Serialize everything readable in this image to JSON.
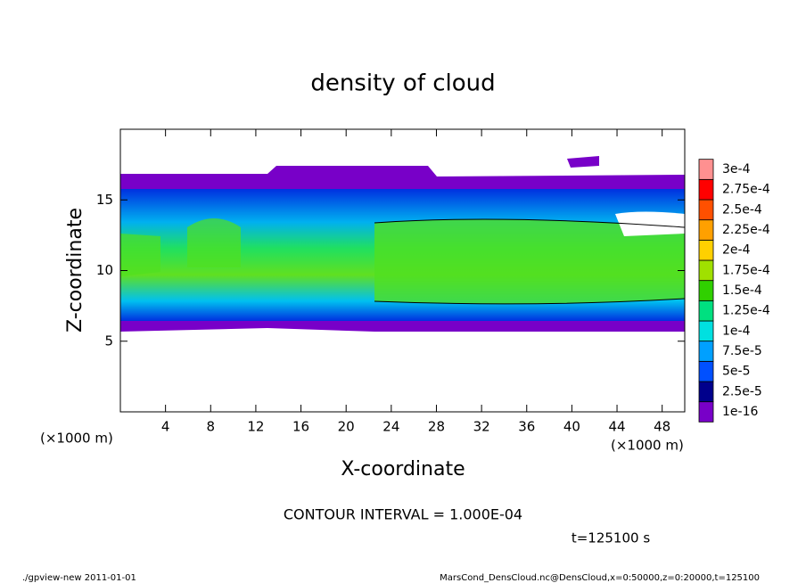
{
  "chart_data": {
    "type": "contour",
    "title": "density of cloud",
    "x_label": "X-coordinate",
    "y_label": "Z-coordinate",
    "x_unit_labels": [
      "(×1000 m)",
      "(×1000 m)"
    ],
    "xlim": [
      0,
      50
    ],
    "xticks": [
      4,
      8,
      12,
      16,
      20,
      24,
      28,
      32,
      36,
      40,
      44,
      48
    ],
    "ylim": [
      0,
      20
    ],
    "yticks": [
      5,
      10,
      15
    ],
    "colorbar": {
      "levels": [
        {
          "value": 1e-16,
          "label": "1e-16"
        },
        {
          "value": 2.5e-05,
          "label": "2.5e-5"
        },
        {
          "value": 5e-05,
          "label": "5e-5"
        },
        {
          "value": 7.5e-05,
          "label": "7.5e-5"
        },
        {
          "value": 0.0001,
          "label": "1e-4"
        },
        {
          "value": 0.000125,
          "label": "1.25e-4"
        },
        {
          "value": 0.00015,
          "label": "1.5e-4"
        },
        {
          "value": 0.000175,
          "label": "1.75e-4"
        },
        {
          "value": 0.0002,
          "label": "2e-4"
        },
        {
          "value": 0.000225,
          "label": "2.25e-4"
        },
        {
          "value": 0.00025,
          "label": "2.5e-4"
        },
        {
          "value": 0.000275,
          "label": "2.75e-4"
        },
        {
          "value": 0.0003,
          "label": "3e-4"
        }
      ],
      "colors": [
        "#7800c8",
        "#00008c",
        "#0050ff",
        "#00a0ff",
        "#00e0e0",
        "#00e080",
        "#30d000",
        "#a0e000",
        "#ffd000",
        "#ffa000",
        "#ff5000",
        "#ff0000",
        "#ff9090"
      ]
    },
    "annotations": [
      "CONTOUR INTERVAL = 1.000E-04",
      "t=125100 s"
    ],
    "footer": [
      "./gpview-new  2011-01-01",
      "MarsCond_DensCloud.nc@DensCloud,x=0:50000,z=0:20000,t=125100"
    ]
  }
}
